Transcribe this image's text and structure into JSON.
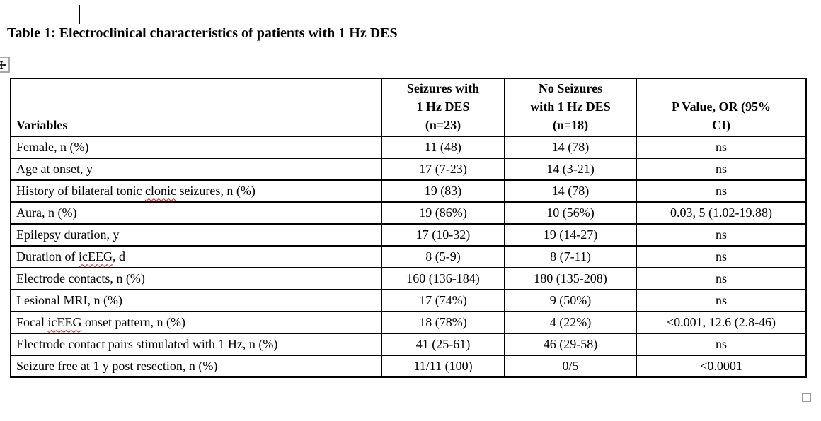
{
  "title": "Table 1: Electroclinical characteristics of patients with 1 Hz DES",
  "colors": {
    "table_border": "#000000",
    "spellcheck_underline": "#e31212",
    "handle_border": "#9a9a9a",
    "background": "#ffffff"
  },
  "icons": {
    "move_handle": "table-move-handle-icon",
    "resize_handle": "table-resize-handle-icon",
    "caret": "text-cursor"
  },
  "table": {
    "header": {
      "variables": "Variables",
      "seizures": "Seizures with\n1 Hz DES\n(n=23)",
      "no_seizures": "No Seizures\nwith 1 Hz DES\n(n=18)",
      "p_value": "P Value, OR (95%\nCI)"
    },
    "rows": [
      {
        "variable": "Female, n (%)",
        "misspelled_word": null,
        "seizures": "11 (48)",
        "no_seizures": "14 (78)",
        "p_value": "ns"
      },
      {
        "variable": "Age at onset, y",
        "misspelled_word": null,
        "seizures": "17 (7-23)",
        "no_seizures": "14 (3-21)",
        "p_value": "ns"
      },
      {
        "variable": "History of bilateral tonic clonic seizures, n (%)",
        "misspelled_word": "clonic",
        "seizures": "19 (83)",
        "no_seizures": "14 (78)",
        "p_value": "ns"
      },
      {
        "variable": "Aura, n (%)",
        "misspelled_word": null,
        "seizures": "19 (86%)",
        "no_seizures": "10 (56%)",
        "p_value": "0.03, 5 (1.02-19.88)"
      },
      {
        "variable": "Epilepsy duration, y",
        "misspelled_word": null,
        "seizures": "17 (10-32)",
        "no_seizures": "19 (14-27)",
        "p_value": "ns"
      },
      {
        "variable": "Duration of icEEG, d",
        "misspelled_word": "icEEG",
        "seizures": "8 (5-9)",
        "no_seizures": "8 (7-11)",
        "p_value": "ns"
      },
      {
        "variable": "Electrode contacts, n (%)",
        "misspelled_word": null,
        "seizures": "160 (136-184)",
        "no_seizures": "180 (135-208)",
        "p_value": "ns"
      },
      {
        "variable": "Lesional MRI, n (%)",
        "misspelled_word": null,
        "seizures": "17 (74%)",
        "no_seizures": "9 (50%)",
        "p_value": "ns"
      },
      {
        "variable": "Focal icEEG onset pattern, n (%)",
        "misspelled_word": "icEEG",
        "seizures": "18 (78%)",
        "no_seizures": "4 (22%)",
        "p_value": "<0.001, 12.6 (2.8-46)"
      },
      {
        "variable": "Electrode contact pairs stimulated with 1 Hz, n (%)",
        "misspelled_word": null,
        "seizures": "41 (25-61)",
        "no_seizures": "46 (29-58)",
        "p_value": "ns"
      },
      {
        "variable": "Seizure free at 1 y post resection, n (%)",
        "misspelled_word": null,
        "seizures": "11/11 (100)",
        "no_seizures": "0/5",
        "p_value": "<0.0001"
      }
    ]
  }
}
